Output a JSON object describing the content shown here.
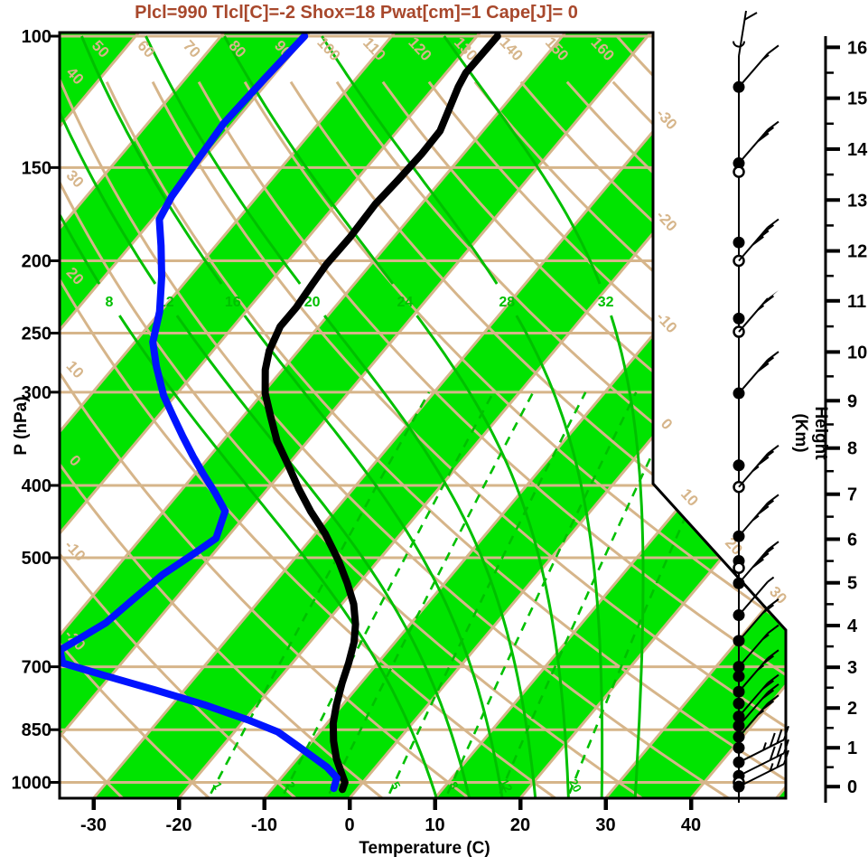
{
  "title": {
    "text": "Plcl=990 Tlcl[C]=-2 Shox=18 Pwat[cm]=1 Cape[J]= 0"
  },
  "colors": {
    "title": "#A8482C",
    "background_lines": "#D6B58A",
    "band_green": "#00E400",
    "line_green": "#00C000",
    "dewpoint_blue": "#0014FF",
    "temperature_black": "#000000"
  },
  "axes": {
    "pressure": {
      "label": "P (hPa)",
      "ticks": [
        100,
        150,
        200,
        250,
        300,
        400,
        500,
        700,
        850,
        1000
      ]
    },
    "temperature": {
      "label": "Temperature (C)",
      "ticks": [
        -30,
        -20,
        -10,
        0,
        10,
        20,
        30,
        40
      ]
    },
    "height": {
      "label": "Height (Km)",
      "ticks": [
        0,
        1,
        2,
        3,
        4,
        5,
        6,
        7,
        8,
        9,
        10,
        11,
        12,
        13,
        14,
        15,
        16
      ]
    }
  },
  "background_labels": {
    "dry_adiabat_top": [
      50,
      60,
      70,
      80,
      90,
      100,
      110,
      120,
      130,
      140,
      150,
      160
    ],
    "dry_adiabat_left": [
      40,
      30,
      20,
      10,
      0,
      -10,
      -20
    ],
    "isotherm_right": [
      -30,
      -20,
      -10,
      0,
      10,
      20,
      30
    ],
    "moist_adiabat": [
      8,
      12,
      16,
      20,
      24,
      28,
      32
    ],
    "mixing_ratio": [
      1,
      2,
      3,
      5,
      8,
      12,
      20
    ]
  },
  "chart_data": {
    "type": "line",
    "chart_kind": "skew-T log-P sounding",
    "xlabel": "Temperature (C)",
    "ylabel_left": "P (hPa)",
    "ylabel_right": "Height (Km)",
    "pressure_range": [
      100,
      1050
    ],
    "series": [
      {
        "name": "temperature",
        "color": "#000000",
        "units": [
          "hPa",
          "C"
        ],
        "points": [
          [
            1022,
            -1.7
          ],
          [
            1000,
            -2.1
          ],
          [
            972,
            -3.4
          ],
          [
            930,
            -5.4
          ],
          [
            880,
            -7.5
          ],
          [
            833,
            -9.3
          ],
          [
            788,
            -10.7
          ],
          [
            736,
            -12.2
          ],
          [
            692,
            -13.4
          ],
          [
            649,
            -14.8
          ],
          [
            614,
            -16.4
          ],
          [
            577,
            -18.6
          ],
          [
            541,
            -21.4
          ],
          [
            505,
            -24.6
          ],
          [
            464,
            -28.9
          ],
          [
            433,
            -32.8
          ],
          [
            404,
            -36.4
          ],
          [
            373,
            -40.3
          ],
          [
            349,
            -43.6
          ],
          [
            324,
            -46.7
          ],
          [
            301,
            -49.7
          ],
          [
            280,
            -52.0
          ],
          [
            264,
            -53.4
          ],
          [
            245,
            -54.5
          ],
          [
            231,
            -54.5
          ],
          [
            215,
            -54.9
          ],
          [
            202,
            -55.2
          ],
          [
            186,
            -55.1
          ],
          [
            168,
            -55.4
          ],
          [
            156,
            -55.1
          ],
          [
            144,
            -54.9
          ],
          [
            134,
            -55.0
          ],
          [
            117,
            -57.2
          ],
          [
            112,
            -57.7
          ],
          [
            100,
            -57.6
          ]
        ]
      },
      {
        "name": "dewpoint",
        "color": "#0014FF",
        "units": [
          "hPa",
          "C"
        ],
        "points": [
          [
            1019,
            -2.8
          ],
          [
            986,
            -3.5
          ],
          [
            954,
            -5.7
          ],
          [
            913,
            -9.4
          ],
          [
            856,
            -14.9
          ],
          [
            826,
            -19.4
          ],
          [
            788,
            -26.0
          ],
          [
            752,
            -33.4
          ],
          [
            719,
            -40.8
          ],
          [
            692,
            -46.9
          ],
          [
            665,
            -48.5
          ],
          [
            643,
            -47.4
          ],
          [
            611,
            -45.8
          ],
          [
            569,
            -44.9
          ],
          [
            527,
            -43.9
          ],
          [
            494,
            -42.3
          ],
          [
            471,
            -41.2
          ],
          [
            433,
            -42.8
          ],
          [
            409,
            -45.8
          ],
          [
            387,
            -48.9
          ],
          [
            366,
            -51.9
          ],
          [
            344,
            -55.1
          ],
          [
            322,
            -58.4
          ],
          [
            303,
            -61.4
          ],
          [
            277,
            -65.1
          ],
          [
            257,
            -67.9
          ],
          [
            234,
            -70.1
          ],
          [
            210,
            -73.3
          ],
          [
            191,
            -76.4
          ],
          [
            176,
            -79.2
          ],
          [
            164,
            -80.0
          ],
          [
            151,
            -80.4
          ],
          [
            131,
            -81.1
          ],
          [
            114,
            -80.7
          ],
          [
            100,
            -80.2
          ]
        ]
      }
    ],
    "wind_barbs": [
      {
        "p": 101,
        "marker": "none",
        "hook": true
      },
      {
        "p": 117,
        "marker": "filled",
        "barb": [
          0,
          1,
          1
        ]
      },
      {
        "p": 148,
        "marker": "filled",
        "barb": [
          0,
          3,
          0
        ]
      },
      {
        "p": 152,
        "marker": "open"
      },
      {
        "p": 189,
        "marker": "filled"
      },
      {
        "p": 200,
        "marker": "open",
        "barb": [
          0,
          4,
          0
        ]
      },
      {
        "p": 239,
        "marker": "filled"
      },
      {
        "p": 249,
        "marker": "open",
        "barb": [
          1,
          1,
          1
        ]
      },
      {
        "p": 301,
        "marker": "filled",
        "barb": [
          0,
          3,
          0
        ]
      },
      {
        "p": 376,
        "marker": "filled"
      },
      {
        "p": 402,
        "marker": "open",
        "barb": [
          0,
          3,
          1
        ]
      },
      {
        "p": 468,
        "marker": "filled",
        "barb": [
          0,
          3,
          1
        ]
      },
      {
        "p": 505,
        "marker": "filled"
      },
      {
        "p": 516,
        "marker": "open"
      },
      {
        "p": 541,
        "marker": "filled",
        "barb": [
          0,
          4,
          0
        ]
      },
      {
        "p": 597,
        "marker": "filled",
        "barb": [
          0,
          0,
          1
        ]
      },
      {
        "p": 646,
        "marker": "filled",
        "barb": [
          0,
          2,
          0
        ]
      },
      {
        "p": 700,
        "marker": "filled",
        "barb": [
          0,
          1,
          1
        ]
      },
      {
        "p": 721,
        "marker": "filled"
      },
      {
        "p": 756,
        "marker": "filled",
        "barb": [
          0,
          2,
          1
        ]
      },
      {
        "p": 784,
        "marker": "filled"
      },
      {
        "p": 816,
        "marker": "filled",
        "barb": [
          0,
          2,
          0
        ]
      },
      {
        "p": 840,
        "marker": "filled",
        "barb": [
          0,
          2,
          0
        ]
      },
      {
        "p": 869,
        "marker": "filled",
        "barb": [
          0,
          2,
          1
        ]
      },
      {
        "p": 899,
        "marker": "filled"
      },
      {
        "p": 940,
        "marker": "filled",
        "barb": [
          0,
          3,
          1
        ],
        "shallow": true
      },
      {
        "p": 980,
        "marker": "filled",
        "barb": [
          0,
          3,
          0
        ],
        "shallow": true
      },
      {
        "p": 1000,
        "marker": "open"
      },
      {
        "p": 1013,
        "marker": "filled",
        "barb": [
          0,
          2,
          1
        ],
        "shallow": true
      }
    ]
  }
}
